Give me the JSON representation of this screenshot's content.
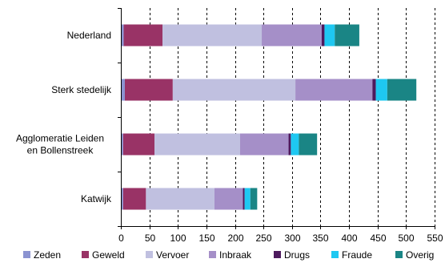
{
  "chart_data": {
    "type": "bar",
    "orientation": "horizontal",
    "stacked": true,
    "categories": [
      "Nederland",
      "Sterk stedelijk",
      "Agglomeratie Leiden\nen Bollenstreek",
      "Katwijk"
    ],
    "series": [
      {
        "name": "Zeden",
        "color": "#8b93d1",
        "values": [
          5,
          7,
          4,
          4
        ]
      },
      {
        "name": "Geweld",
        "color": "#993366",
        "values": [
          68,
          84,
          55,
          40
        ]
      },
      {
        "name": "Vervoer",
        "color": "#c0c0e0",
        "values": [
          174,
          215,
          150,
          120
        ]
      },
      {
        "name": "Inbraak",
        "color": "#a58fc8",
        "values": [
          105,
          135,
          85,
          50
        ]
      },
      {
        "name": "Drugs",
        "color": "#4d1a5e",
        "values": [
          5,
          6,
          4,
          3
        ]
      },
      {
        "name": "Fraude",
        "color": "#1ec8f2",
        "values": [
          18,
          20,
          14,
          10
        ]
      },
      {
        "name": "Overig",
        "color": "#1a8585",
        "values": [
          43,
          51,
          32,
          12
        ]
      }
    ],
    "xlim": [
      0,
      550
    ],
    "xticks": [
      0,
      50,
      100,
      150,
      200,
      250,
      300,
      350,
      400,
      450,
      500,
      550
    ],
    "grid": "vertical dashed",
    "legend": "bottom"
  }
}
